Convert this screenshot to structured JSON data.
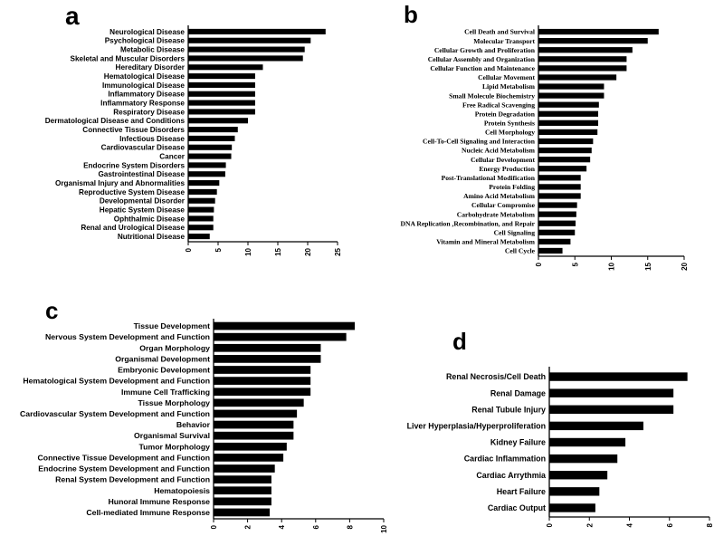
{
  "chart_data": [
    {
      "panel": "a",
      "type": "bar",
      "orientation": "horizontal",
      "title": "",
      "xlabel": "",
      "ylabel": "",
      "xlim": [
        0,
        25
      ],
      "xticks": [
        "0",
        "5",
        "10",
        "15",
        "20",
        "25"
      ],
      "categories": [
        "Neurological Disease",
        "Psychological Disease",
        "Metabolic Disease",
        "Skeletal and Muscular Disorders",
        "Hereditary Disorder",
        "Hematological Disease",
        "Immunological Disease",
        "Inflammatory Disease",
        "Inflammatory Response",
        "Respiratory Disease",
        "Dermatological Disease and Conditions",
        "Connective Tissue Disorders",
        "Infectious Disease",
        "Cardiovascular Disease",
        "Cancer",
        "Endocrine System Disorders",
        "Gastrointestinal Disease",
        "Organismal Injury and Abnormalities",
        "Reproductive System Disease",
        "Developmental Disorder",
        "Hepatic System Disease",
        "Ophthalmic Disease",
        "Renal and Urological Disease",
        "Nutritional Disease"
      ],
      "values": [
        23,
        20.5,
        19.5,
        19.2,
        12.5,
        11.2,
        11.2,
        11.2,
        11.2,
        11.2,
        10,
        8.3,
        7.8,
        7.3,
        7.2,
        6.3,
        6.2,
        5.2,
        4.8,
        4.5,
        4.3,
        4.2,
        4.2,
        3.6
      ]
    },
    {
      "panel": "b",
      "type": "bar",
      "orientation": "horizontal",
      "title": "",
      "xlabel": "",
      "ylabel": "",
      "xlim": [
        0,
        20
      ],
      "xticks": [
        "0",
        "5",
        "10",
        "15",
        "20"
      ],
      "categories": [
        "Cell Death and Survival",
        "Molecular Transport",
        "Cellular Growth and Proliferation",
        "Cellular Assembly and Organization",
        "Cellular Function and Maintenance",
        "Cellular Movement",
        "Lipid Metabolism",
        "Small Molecule Biochemistry",
        "Free Radical Scavenging",
        "Protein Degradation",
        "Protein Synthesis",
        "Cell Morphology",
        "Cell-To-Cell Signaling and Interaction",
        "Nucleic Acid Metabolism",
        "Cellular Development",
        "Energy Production",
        "Post-Translational Modification",
        "Protein Folding",
        "Amino Acid Metabolism",
        "Cellular Compromise",
        "Carbohydrate Metabolism",
        "DNA Replication ,Recombination, and Repair",
        "Cell Signaling",
        "Vitamin and Mineral Metabolism",
        "Cell Cycle"
      ],
      "values": [
        16.5,
        15,
        12.9,
        12.1,
        12.1,
        10.7,
        9,
        9,
        8.3,
        8.2,
        8.2,
        8.1,
        7.5,
        7.3,
        7.1,
        6.6,
        5.8,
        5.8,
        5.8,
        5.3,
        5.2,
        5.1,
        5,
        4.4,
        3.3
      ]
    },
    {
      "panel": "c",
      "type": "bar",
      "orientation": "horizontal",
      "title": "",
      "xlabel": "",
      "ylabel": "",
      "xlim": [
        0,
        10
      ],
      "xticks": [
        "0",
        "2",
        "4",
        "6",
        "8",
        "10"
      ],
      "categories": [
        "Tissue Development",
        "Nervous System Development and Function",
        "Organ Morphology",
        "Organismal Development",
        "Embryonic Development",
        "Hematological System Development and Function",
        "Immune Cell Trafficking",
        "Tissue Morphology",
        "Cardiovascular System Development and Function",
        "Behavior",
        "Organismal Survival",
        "Tumor Morphology",
        "Connective Tissue Development and Function",
        "Endocrine System Development and Function",
        "Renal  System Development and Function",
        "Hematopoiesis",
        "Hunoral Immune Response",
        "Cell-mediated Immune Response"
      ],
      "values": [
        8.3,
        7.8,
        6.3,
        6.3,
        5.7,
        5.7,
        5.7,
        5.3,
        4.9,
        4.7,
        4.7,
        4.3,
        4.1,
        3.6,
        3.4,
        3.4,
        3.4,
        3.3
      ]
    },
    {
      "panel": "d",
      "type": "bar",
      "orientation": "horizontal",
      "title": "",
      "xlabel": "",
      "ylabel": "",
      "xlim": [
        0,
        8
      ],
      "xticks": [
        "0",
        "2",
        "4",
        "6",
        "8"
      ],
      "categories": [
        "Renal Necrosis/Cell Death",
        "Renal Damage",
        "Renal Tubule Injury",
        "Liver Hyperplasia/Hyperproliferation",
        "Kidney Failure",
        "Cardiac Inflammation",
        "Cardiac Arrythmia",
        "Heart Failure",
        "Cardiac Output"
      ],
      "values": [
        6.9,
        6.2,
        6.2,
        4.7,
        3.8,
        3.4,
        2.9,
        2.5,
        2.3
      ]
    }
  ],
  "panel_labels": [
    "a",
    "b",
    "c",
    "d"
  ]
}
